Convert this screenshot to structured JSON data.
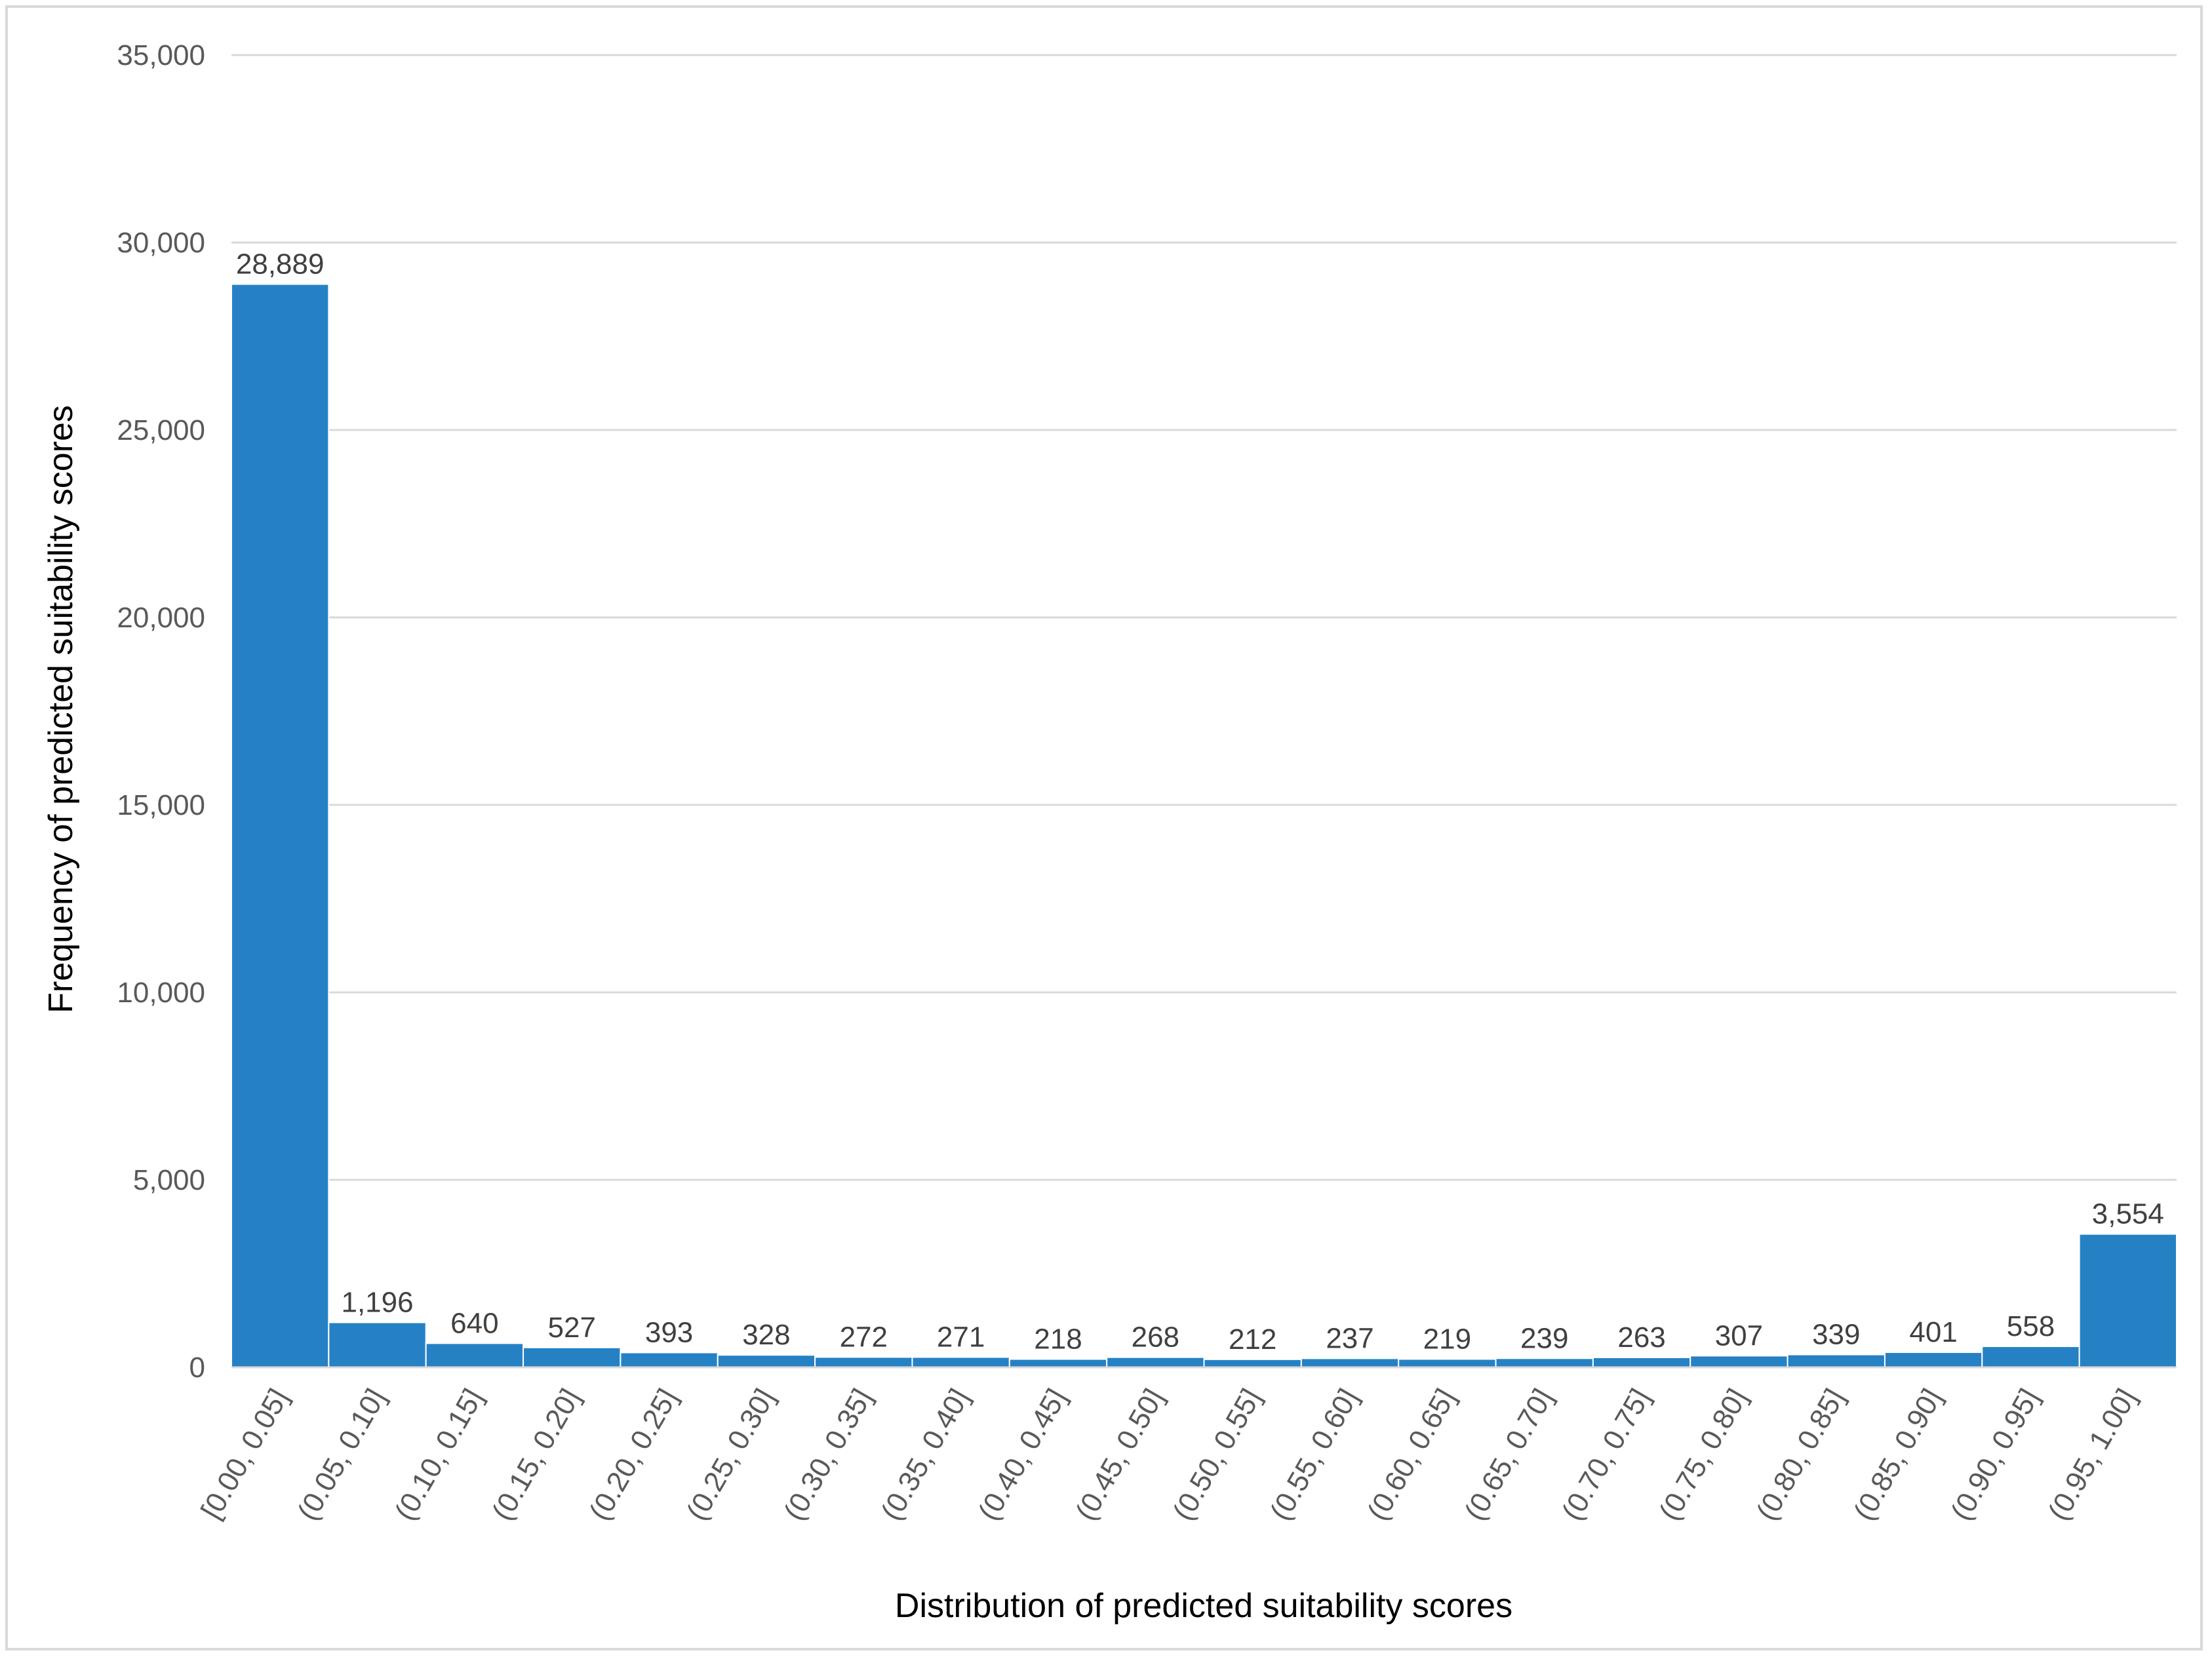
{
  "chart_data": {
    "type": "bar",
    "title": "",
    "xlabel": "Distribution of predicted suitability scores",
    "ylabel": "Frequency of predicted suitability scores",
    "categories": [
      "[0.00, 0.05]",
      "(0.05, 0.10]",
      "(0.10, 0.15]",
      "(0.15, 0.20]",
      "(0.20, 0.25]",
      "(0.25, 0.30]",
      "(0.30, 0.35]",
      "(0.35, 0.40]",
      "(0.40, 0.45]",
      "(0.45, 0.50]",
      "(0.50, 0.55]",
      "(0.55, 0.60]",
      "(0.60, 0.65]",
      "(0.65, 0.70]",
      "(0.70, 0.75]",
      "(0.75, 0.80]",
      "(0.80, 0.85]",
      "(0.85, 0.90]",
      "(0.90, 0.95]",
      "(0.95, 1.00]"
    ],
    "values": [
      28889,
      1196,
      640,
      527,
      393,
      328,
      272,
      271,
      218,
      268,
      212,
      237,
      219,
      239,
      263,
      307,
      339,
      401,
      558,
      3554
    ],
    "data_labels": [
      "28,889",
      "1,196",
      "640",
      "527",
      "393",
      "328",
      "272",
      "271",
      "218",
      "268",
      "212",
      "237",
      "219",
      "239",
      "263",
      "307",
      "339",
      "401",
      "558",
      "3,554"
    ],
    "ylim": [
      0,
      35000
    ],
    "yticks": [
      0,
      5000,
      10000,
      15000,
      20000,
      25000,
      30000,
      35000
    ],
    "ytick_labels": [
      "0",
      "5,000",
      "10,000",
      "15,000",
      "20,000",
      "25,000",
      "30,000",
      "35,000"
    ],
    "grid": true,
    "legend": "none",
    "colors": {
      "bar": "#2581c4",
      "bar_edge": "#ffffff",
      "grid": "#d9d9d9",
      "frame": "#d9d9d9"
    }
  }
}
